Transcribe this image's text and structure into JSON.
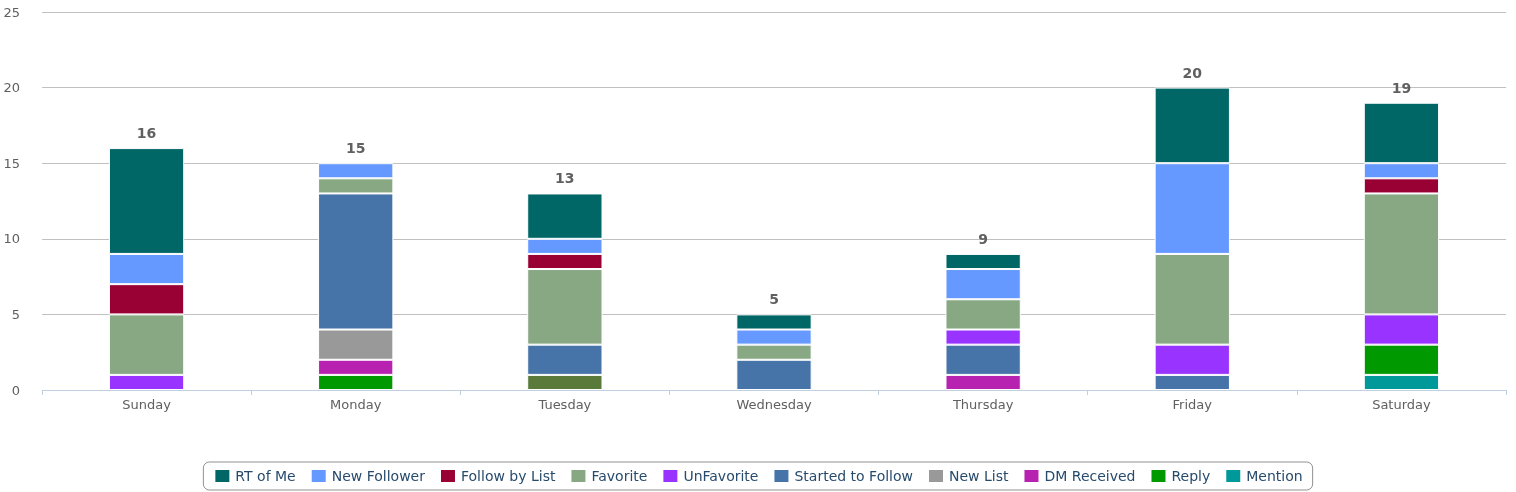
{
  "chart_data": {
    "type": "bar",
    "stacked": true,
    "categories": [
      "Sunday",
      "Monday",
      "Tuesday",
      "Wednesday",
      "Thursday",
      "Friday",
      "Saturday"
    ],
    "series": [
      {
        "name": "Mention",
        "color": "#009999",
        "values": [
          null,
          null,
          null,
          null,
          null,
          null,
          1
        ]
      },
      {
        "color": "#5a7a3a",
        "values": [
          null,
          null,
          1,
          null,
          null,
          null,
          null
        ]
      },
      {
        "name": "Reply",
        "color": "#009900",
        "values": [
          null,
          1,
          null,
          null,
          null,
          null,
          2
        ]
      },
      {
        "name": "DM Received",
        "color": "#b822b0",
        "values": [
          null,
          1,
          null,
          null,
          1,
          null,
          null
        ]
      },
      {
        "name": "New List",
        "color": "#999999",
        "values": [
          null,
          2,
          null,
          null,
          null,
          null,
          null
        ]
      },
      {
        "name": "Started to Follow",
        "color": "#4673a8",
        "values": [
          null,
          9,
          2,
          2,
          2,
          1,
          null
        ]
      },
      {
        "name": "UnFavorite",
        "color": "#9933ff",
        "values": [
          1,
          null,
          null,
          null,
          1,
          2,
          2
        ]
      },
      {
        "name": "Favorite",
        "color": "#88a884",
        "values": [
          4,
          1,
          5,
          1,
          2,
          6,
          8
        ]
      },
      {
        "name": "Follow by List",
        "color": "#990033",
        "values": [
          2,
          null,
          1,
          null,
          null,
          null,
          1
        ]
      },
      {
        "name": "New Follower",
        "color": "#6699ff",
        "values": [
          2,
          1,
          1,
          1,
          2,
          6,
          1
        ]
      },
      {
        "name": "RT of Me",
        "color": "#006666",
        "values": [
          7,
          null,
          3,
          1,
          1,
          5,
          4
        ]
      }
    ],
    "totals": [
      "16",
      "15",
      "13",
      "5",
      "9",
      "20",
      "19"
    ],
    "ylim": [
      0,
      25
    ],
    "yticks": [
      0,
      5,
      10,
      15,
      20,
      25
    ],
    "grid": "y",
    "legend": "bottom"
  }
}
